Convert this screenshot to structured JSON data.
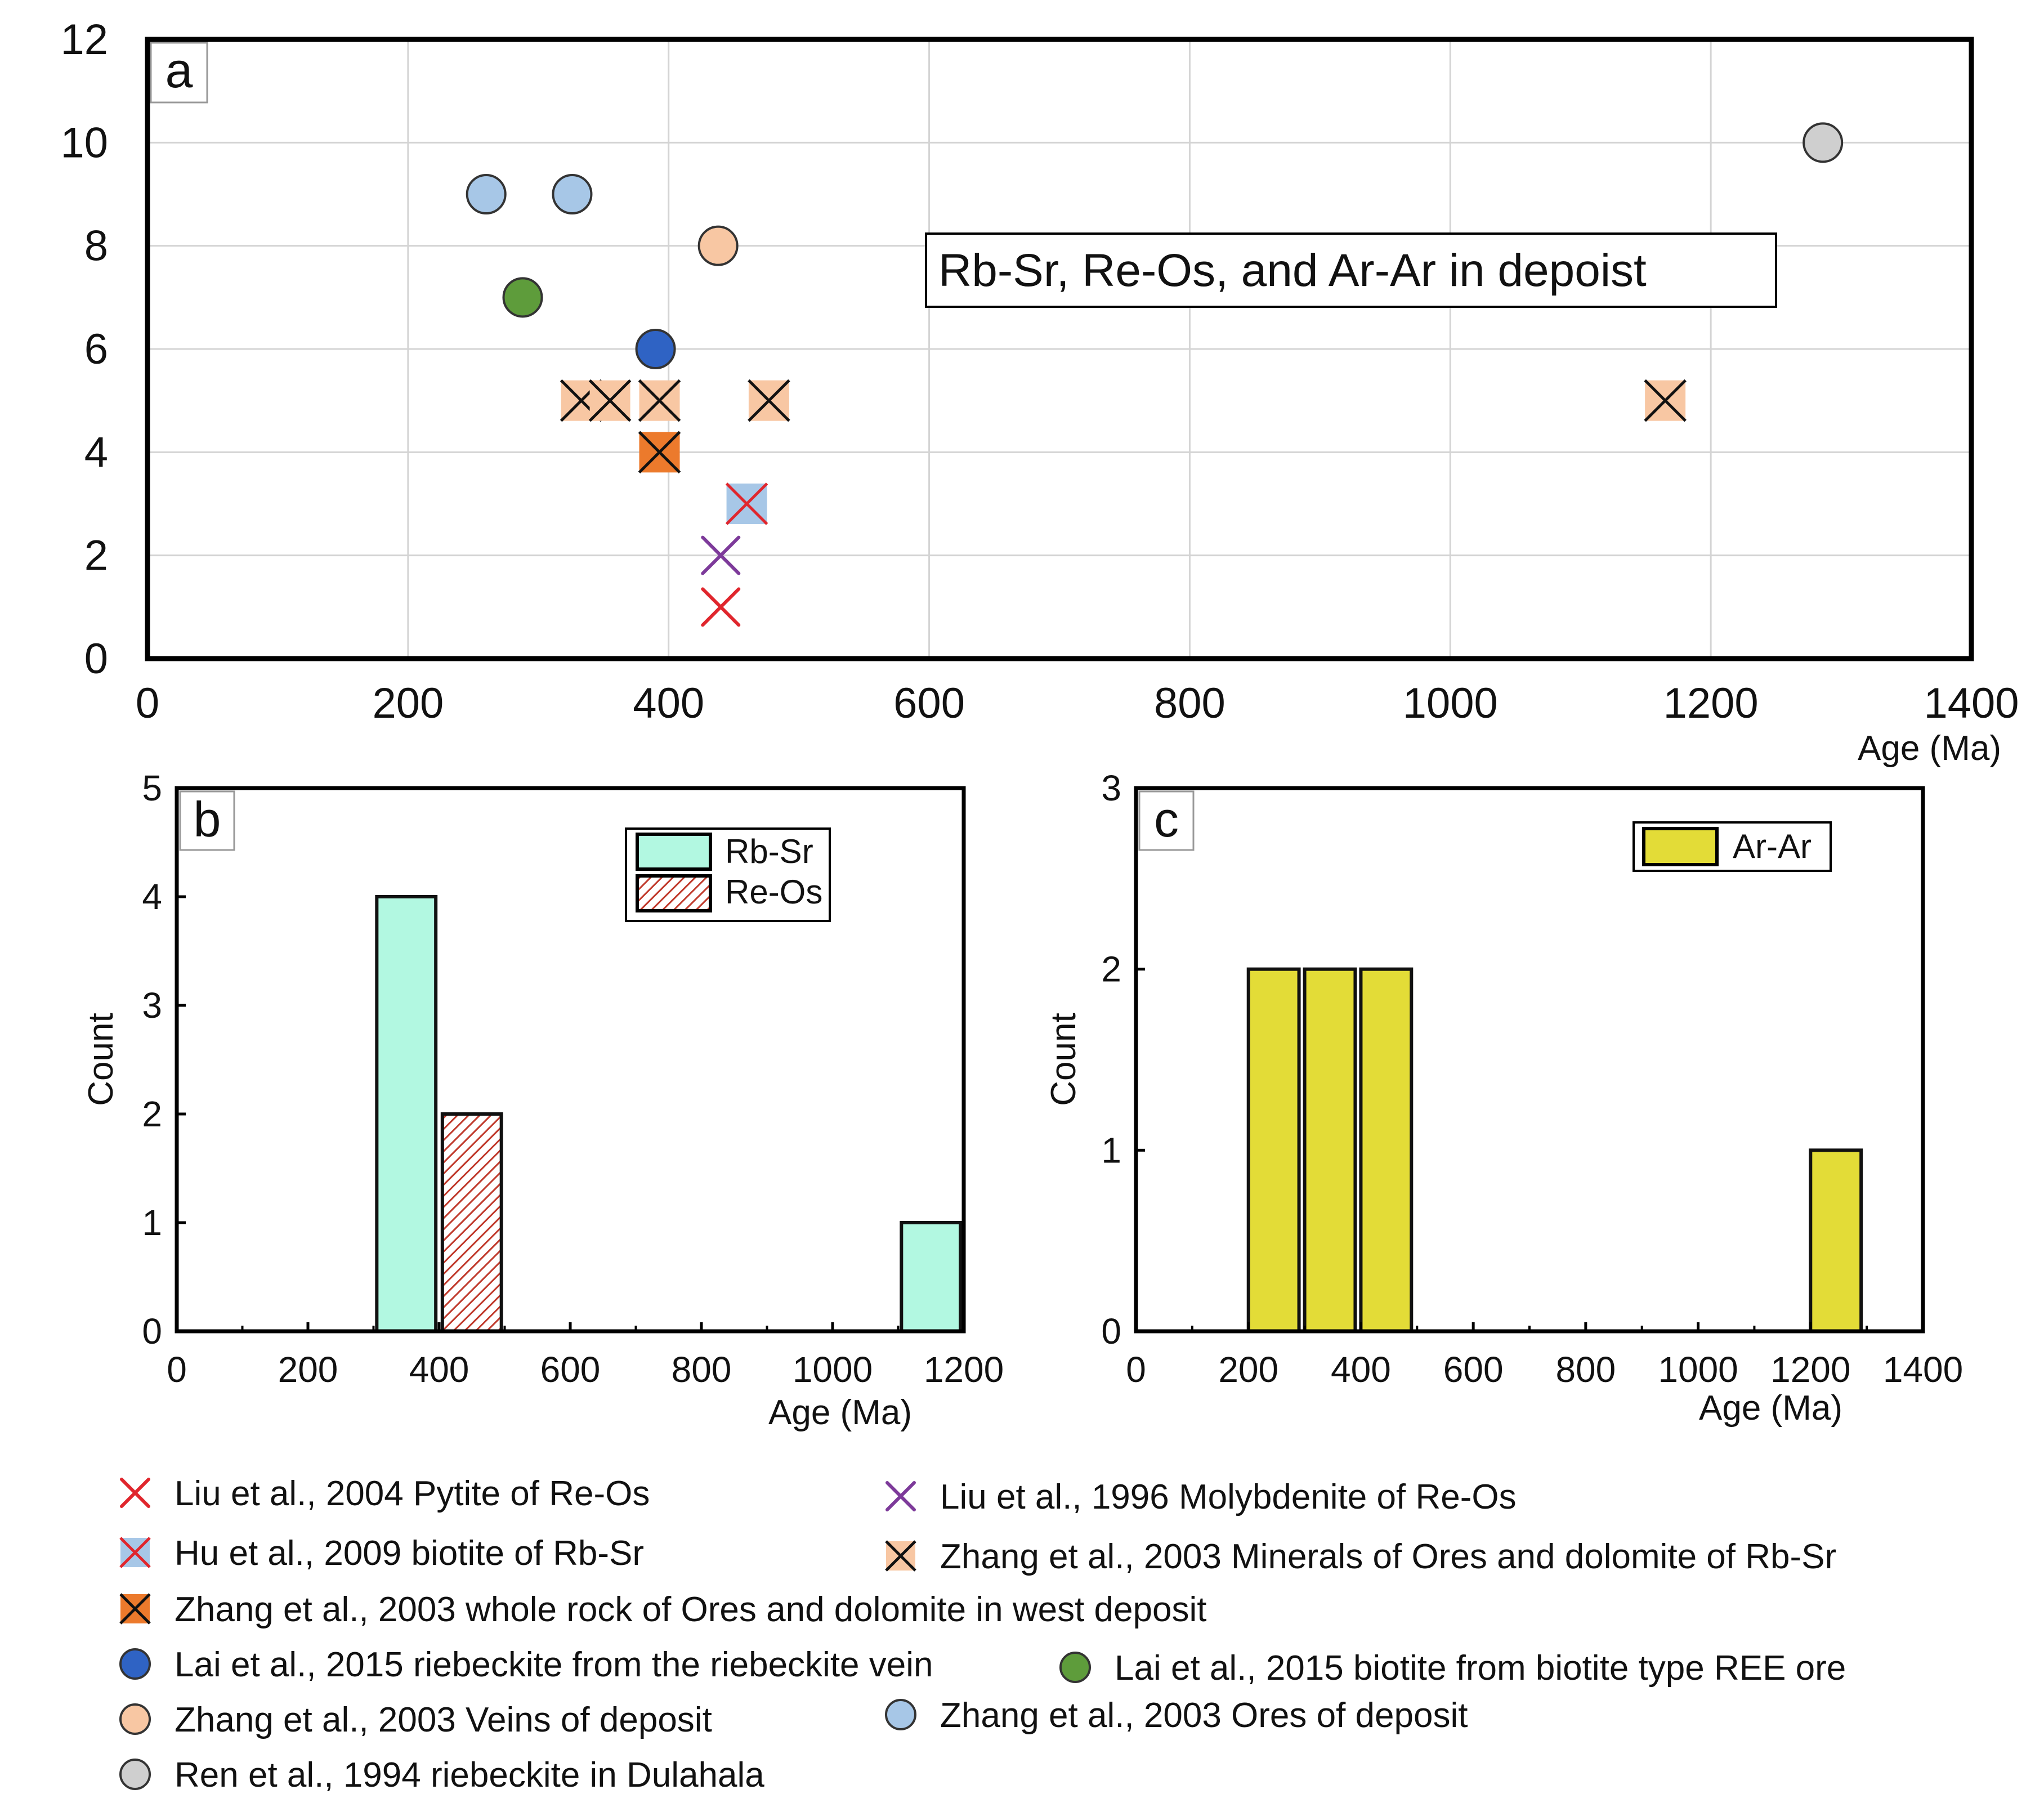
{
  "colors": {
    "red": "#e0262d",
    "purple": "#7d3a9a",
    "light_blue": "#a7c7e7",
    "peach": "#f8c7a3",
    "orange": "#ec7a2c",
    "dark_blue": "#2f63c4",
    "green": "#5e9c3b",
    "grey": "#cfcfcf",
    "aquamarine": "#b2f8e1",
    "hatch": "#c0392b",
    "yellow": "#e3dc37"
  },
  "chart_data": [
    {
      "panel": "a",
      "type": "scatter",
      "annotation": "Rb-Sr, Re-Os, and Ar-Ar in depoist",
      "xlabel": "Age  (Ma)",
      "ylabel": "",
      "xlim": [
        0,
        1400
      ],
      "ylim": [
        0,
        12
      ],
      "x_ticks": [
        "0",
        "200",
        "400",
        "600",
        "800",
        "1000",
        "1200",
        "1400"
      ],
      "y_ticks": [
        "0",
        "2",
        "4",
        "6",
        "8",
        "10",
        "12"
      ],
      "grid": true,
      "series": [
        {
          "name": "Liu et al., 2004 Pytite of Re-Os",
          "marker": "x",
          "color": "red",
          "points": [
            {
              "x": 440,
              "y": 1
            }
          ]
        },
        {
          "name": "Liu et al., 1996 Molybdenite of Re-Os",
          "marker": "x",
          "color": "purple",
          "points": [
            {
              "x": 440,
              "y": 2
            }
          ]
        },
        {
          "name": "Hu et al., 2009 biotite of Rb-Sr",
          "marker": "square-x",
          "color": "light_blue",
          "cross": "red",
          "points": [
            {
              "x": 460,
              "y": 3
            }
          ]
        },
        {
          "name": "Zhang et al., 2003 Minerals of Ores and dolomite of Rb-Sr",
          "marker": "square-x",
          "color": "peach",
          "cross": "black",
          "points": [
            {
              "x": 333,
              "y": 5
            },
            {
              "x": 355,
              "y": 5
            },
            {
              "x": 393,
              "y": 5
            },
            {
              "x": 477,
              "y": 5
            },
            {
              "x": 1165,
              "y": 5
            }
          ]
        },
        {
          "name": "Zhang et al., 2003 whole rock of Ores and dolomite in west deposit",
          "marker": "square-x",
          "color": "orange",
          "cross": "black",
          "points": [
            {
              "x": 393,
              "y": 4
            }
          ]
        },
        {
          "name": "Lai et al., 2015 riebeckite from the riebeckite vein",
          "marker": "circle",
          "color": "dark_blue",
          "points": [
            {
              "x": 390,
              "y": 6
            }
          ]
        },
        {
          "name": "Lai et al., 2015 biotite from biotite type REE ore",
          "marker": "circle",
          "color": "green",
          "points": [
            {
              "x": 288,
              "y": 7
            }
          ]
        },
        {
          "name": "Zhang et al., 2003 Veins of deposit",
          "marker": "circle",
          "color": "peach",
          "points": [
            {
              "x": 438,
              "y": 8
            }
          ]
        },
        {
          "name": "Zhang et al., 2003 Ores of deposit",
          "marker": "circle",
          "color": "light_blue",
          "points": [
            {
              "x": 260,
              "y": 9
            },
            {
              "x": 326,
              "y": 9
            }
          ]
        },
        {
          "name": "Ren et al., 1994 riebeckite in Dulahala",
          "marker": "circle",
          "color": "grey",
          "points": [
            {
              "x": 1286,
              "y": 10
            }
          ]
        }
      ]
    },
    {
      "panel": "b",
      "type": "bar",
      "xlabel": "Age  (Ma)",
      "ylabel": "Count",
      "xlim": [
        0,
        1200
      ],
      "ylim": [
        0,
        5
      ],
      "x_ticks": [
        "0",
        "200",
        "400",
        "600",
        "800",
        "1000",
        "1200"
      ],
      "y_ticks": [
        "0",
        "1",
        "2",
        "3",
        "4",
        "5"
      ],
      "legend_position": "top-right",
      "series": [
        {
          "name": "Rb-Sr",
          "fill": "aquamarine",
          "bins": [
            {
              "x0": 305,
              "x1": 395,
              "count": 4
            },
            {
              "x0": 1105,
              "x1": 1195,
              "count": 1
            }
          ]
        },
        {
          "name": "Re-Os",
          "fill": "hatch",
          "bins": [
            {
              "x0": 405,
              "x1": 495,
              "count": 2
            }
          ]
        }
      ]
    },
    {
      "panel": "c",
      "type": "bar",
      "xlabel": "Age  (Ma)",
      "ylabel": "Count",
      "xlim": [
        0,
        1400
      ],
      "ylim": [
        0,
        3
      ],
      "x_ticks": [
        "0",
        "200",
        "400",
        "600",
        "800",
        "1000",
        "1200",
        "1400"
      ],
      "y_ticks": [
        "0",
        "1",
        "2",
        "3"
      ],
      "legend_position": "top-right",
      "series": [
        {
          "name": "Ar-Ar",
          "fill": "yellow",
          "bins": [
            {
              "x0": 200,
              "x1": 290,
              "count": 2
            },
            {
              "x0": 300,
              "x1": 390,
              "count": 2
            },
            {
              "x0": 400,
              "x1": 490,
              "count": 2
            },
            {
              "x0": 1200,
              "x1": 1290,
              "count": 1
            }
          ]
        }
      ]
    }
  ],
  "panels": {
    "a_label": "a",
    "b_label": "b",
    "c_label": "c"
  }
}
